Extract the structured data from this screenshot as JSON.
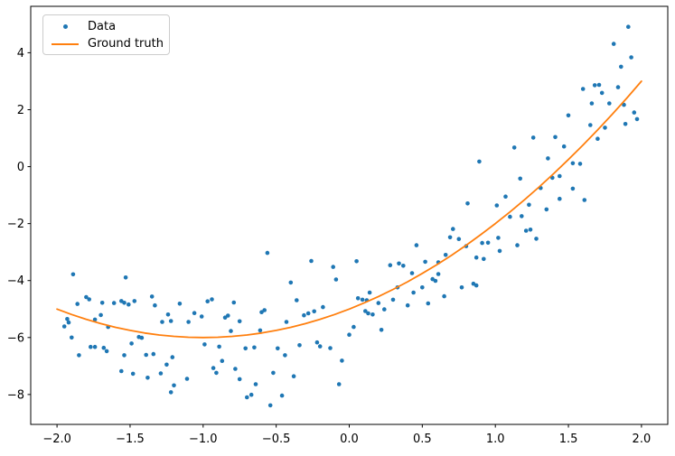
{
  "chart_data": {
    "type": "scatter",
    "title": "",
    "xlabel": "",
    "ylabel": "",
    "grid": false,
    "xlim": [
      -2.18,
      2.18
    ],
    "ylim": [
      -9.05,
      5.63
    ],
    "x_ticks": {
      "values": [
        -2.0,
        -1.5,
        -1.0,
        -0.5,
        0.0,
        0.5,
        1.0,
        1.5,
        2.0
      ],
      "labels": [
        "−2.0",
        "−1.5",
        "−1.0",
        "−0.5",
        "0.0",
        "0.5",
        "1.0",
        "1.5",
        "2.0"
      ]
    },
    "y_ticks": {
      "values": [
        -8,
        -6,
        -4,
        -2,
        0,
        2,
        4
      ],
      "labels": [
        "−8",
        "−6",
        "−4",
        "−2",
        "0",
        "2",
        "4"
      ]
    },
    "legend": {
      "position": "upper left",
      "items": [
        {
          "label": "Data",
          "marker": "dot",
          "color": "#1f77b4"
        },
        {
          "label": "Ground truth",
          "marker": "line",
          "color": "#ff7f0e"
        }
      ]
    },
    "colors": {
      "scatter": "#1f77b4",
      "line": "#ff7f0e",
      "spine": "#000000",
      "tick_label": "#000000",
      "background": "#ffffff",
      "legend_border": "#cccccc"
    },
    "series": [
      {
        "name": "Data",
        "type": "scatter",
        "color": "#1f77b4",
        "marker_size": 4.6,
        "points": [
          [
            -1.95,
            -5.61
          ],
          [
            -1.93,
            -5.35
          ],
          [
            -1.92,
            -5.47
          ],
          [
            -1.9,
            -6.0
          ],
          [
            -1.89,
            -3.78
          ],
          [
            -1.86,
            -4.82
          ],
          [
            -1.85,
            -6.62
          ],
          [
            -1.8,
            -4.58
          ],
          [
            -1.78,
            -4.66
          ],
          [
            -1.77,
            -6.33
          ],
          [
            -1.74,
            -6.33
          ],
          [
            -1.74,
            -5.37
          ],
          [
            -1.7,
            -5.21
          ],
          [
            -1.69,
            -4.78
          ],
          [
            -1.68,
            -6.36
          ],
          [
            -1.66,
            -6.48
          ],
          [
            -1.65,
            -5.63
          ],
          [
            -1.61,
            -4.79
          ],
          [
            -1.56,
            -4.72
          ],
          [
            -1.56,
            -7.18
          ],
          [
            -1.54,
            -4.78
          ],
          [
            -1.54,
            -6.62
          ],
          [
            -1.53,
            -3.89
          ],
          [
            -1.51,
            -4.84
          ],
          [
            -1.49,
            -6.21
          ],
          [
            -1.48,
            -7.27
          ],
          [
            -1.47,
            -4.72
          ],
          [
            -1.44,
            -5.98
          ],
          [
            -1.42,
            -6.01
          ],
          [
            -1.39,
            -6.61
          ],
          [
            -1.38,
            -7.41
          ],
          [
            -1.35,
            -4.56
          ],
          [
            -1.34,
            -6.58
          ],
          [
            -1.33,
            -4.87
          ],
          [
            -1.29,
            -7.26
          ],
          [
            -1.28,
            -5.45
          ],
          [
            -1.25,
            -6.95
          ],
          [
            -1.24,
            -5.19
          ],
          [
            -1.22,
            -5.42
          ],
          [
            -1.22,
            -7.92
          ],
          [
            -1.21,
            -6.69
          ],
          [
            -1.2,
            -7.68
          ],
          [
            -1.16,
            -4.81
          ],
          [
            -1.11,
            -7.45
          ],
          [
            -1.1,
            -5.45
          ],
          [
            -1.06,
            -5.14
          ],
          [
            -1.01,
            -5.26
          ],
          [
            -0.99,
            -6.24
          ],
          [
            -0.97,
            -4.73
          ],
          [
            -0.94,
            -4.66
          ],
          [
            -0.93,
            -7.07
          ],
          [
            -0.91,
            -7.24
          ],
          [
            -0.89,
            -6.32
          ],
          [
            -0.87,
            -6.82
          ],
          [
            -0.85,
            -5.3
          ],
          [
            -0.83,
            -5.23
          ],
          [
            -0.81,
            -5.77
          ],
          [
            -0.79,
            -4.77
          ],
          [
            -0.78,
            -7.1
          ],
          [
            -0.75,
            -5.43
          ],
          [
            -0.75,
            -7.46
          ],
          [
            -0.71,
            -6.38
          ],
          [
            -0.7,
            -8.1
          ],
          [
            -0.67,
            -8.01
          ],
          [
            -0.65,
            -6.35
          ],
          [
            -0.64,
            -7.64
          ],
          [
            -0.61,
            -5.75
          ],
          [
            -0.6,
            -5.11
          ],
          [
            -0.58,
            -5.04
          ],
          [
            -0.56,
            -3.03
          ],
          [
            -0.54,
            -8.38
          ],
          [
            -0.52,
            -7.24
          ],
          [
            -0.49,
            -6.38
          ],
          [
            -0.46,
            -8.04
          ],
          [
            -0.44,
            -6.62
          ],
          [
            -0.43,
            -5.45
          ],
          [
            -0.4,
            -4.07
          ],
          [
            -0.38,
            -7.36
          ],
          [
            -0.36,
            -4.69
          ],
          [
            -0.34,
            -6.27
          ],
          [
            -0.31,
            -5.22
          ],
          [
            -0.28,
            -5.15
          ],
          [
            -0.26,
            -3.31
          ],
          [
            -0.24,
            -5.08
          ],
          [
            -0.22,
            -6.17
          ],
          [
            -0.2,
            -6.31
          ],
          [
            -0.18,
            -4.93
          ],
          [
            -0.13,
            -6.37
          ],
          [
            -0.11,
            -3.52
          ],
          [
            -0.09,
            -3.96
          ],
          [
            -0.07,
            -7.64
          ],
          [
            -0.05,
            -6.81
          ],
          [
            0.0,
            -5.9
          ],
          [
            0.03,
            -5.63
          ],
          [
            0.05,
            -3.32
          ],
          [
            0.06,
            -4.62
          ],
          [
            0.09,
            -4.67
          ],
          [
            0.11,
            -5.07
          ],
          [
            0.12,
            -4.69
          ],
          [
            0.13,
            -5.15
          ],
          [
            0.14,
            -4.42
          ],
          [
            0.16,
            -5.19
          ],
          [
            0.2,
            -4.79
          ],
          [
            0.22,
            -5.73
          ],
          [
            0.24,
            -5.01
          ],
          [
            0.28,
            -3.46
          ],
          [
            0.3,
            -4.67
          ],
          [
            0.33,
            -4.24
          ],
          [
            0.34,
            -3.4
          ],
          [
            0.37,
            -3.48
          ],
          [
            0.4,
            -4.87
          ],
          [
            0.43,
            -3.74
          ],
          [
            0.44,
            -4.42
          ],
          [
            0.46,
            -2.76
          ],
          [
            0.5,
            -4.24
          ],
          [
            0.52,
            -3.34
          ],
          [
            0.54,
            -4.8
          ],
          [
            0.57,
            -3.95
          ],
          [
            0.59,
            -4.01
          ],
          [
            0.61,
            -3.36
          ],
          [
            0.61,
            -3.77
          ],
          [
            0.65,
            -4.55
          ],
          [
            0.66,
            -3.1
          ],
          [
            0.69,
            -2.48
          ],
          [
            0.71,
            -2.19
          ],
          [
            0.75,
            -2.54
          ],
          [
            0.77,
            -4.24
          ],
          [
            0.8,
            -2.79
          ],
          [
            0.81,
            -1.29
          ],
          [
            0.85,
            -4.11
          ],
          [
            0.87,
            -4.17
          ],
          [
            0.87,
            -3.19
          ],
          [
            0.89,
            0.18
          ],
          [
            0.91,
            -2.68
          ],
          [
            0.92,
            -3.24
          ],
          [
            0.95,
            -2.67
          ],
          [
            1.01,
            -1.36
          ],
          [
            1.02,
            -2.5
          ],
          [
            1.03,
            -2.96
          ],
          [
            1.07,
            -1.05
          ],
          [
            1.1,
            -1.76
          ],
          [
            1.13,
            0.67
          ],
          [
            1.15,
            -2.76
          ],
          [
            1.17,
            -0.42
          ],
          [
            1.18,
            -1.74
          ],
          [
            1.21,
            -2.25
          ],
          [
            1.23,
            -1.34
          ],
          [
            1.24,
            -2.21
          ],
          [
            1.26,
            1.02
          ],
          [
            1.28,
            -2.53
          ],
          [
            1.31,
            -0.75
          ],
          [
            1.35,
            -1.5
          ],
          [
            1.36,
            0.29
          ],
          [
            1.39,
            -0.39
          ],
          [
            1.41,
            1.04
          ],
          [
            1.44,
            -0.33
          ],
          [
            1.44,
            -1.13
          ],
          [
            1.47,
            0.71
          ],
          [
            1.5,
            1.8
          ],
          [
            1.53,
            0.12
          ],
          [
            1.53,
            -0.77
          ],
          [
            1.58,
            0.1
          ],
          [
            1.6,
            2.73
          ],
          [
            1.61,
            -1.17
          ],
          [
            1.65,
            1.46
          ],
          [
            1.66,
            2.22
          ],
          [
            1.68,
            2.86
          ],
          [
            1.7,
            0.98
          ],
          [
            1.71,
            2.87
          ],
          [
            1.73,
            2.59
          ],
          [
            1.75,
            1.37
          ],
          [
            1.78,
            2.22
          ],
          [
            1.81,
            4.31
          ],
          [
            1.84,
            2.79
          ],
          [
            1.86,
            3.51
          ],
          [
            1.88,
            2.17
          ],
          [
            1.89,
            1.5
          ],
          [
            1.91,
            4.91
          ],
          [
            1.93,
            3.84
          ],
          [
            1.95,
            1.9
          ],
          [
            1.97,
            1.67
          ]
        ]
      },
      {
        "name": "Ground truth",
        "type": "line",
        "color": "#ff7f0e",
        "line_width": 1.8,
        "formula": "y = x^2 + 2x - 5",
        "points": [
          [
            -2.0,
            -5.0
          ],
          [
            -1.9,
            -5.19
          ],
          [
            -1.8,
            -5.36
          ],
          [
            -1.7,
            -5.51
          ],
          [
            -1.6,
            -5.64
          ],
          [
            -1.5,
            -5.75
          ],
          [
            -1.4,
            -5.84
          ],
          [
            -1.3,
            -5.91
          ],
          [
            -1.2,
            -5.96
          ],
          [
            -1.1,
            -5.99
          ],
          [
            -1.0,
            -6.0
          ],
          [
            -0.9,
            -5.99
          ],
          [
            -0.8,
            -5.96
          ],
          [
            -0.7,
            -5.91
          ],
          [
            -0.6,
            -5.84
          ],
          [
            -0.5,
            -5.75
          ],
          [
            -0.4,
            -5.64
          ],
          [
            -0.3,
            -5.51
          ],
          [
            -0.2,
            -5.36
          ],
          [
            -0.1,
            -5.19
          ],
          [
            0.0,
            -5.0
          ],
          [
            0.1,
            -4.79
          ],
          [
            0.2,
            -4.56
          ],
          [
            0.3,
            -4.31
          ],
          [
            0.4,
            -4.04
          ],
          [
            0.5,
            -3.75
          ],
          [
            0.6,
            -3.44
          ],
          [
            0.7,
            -3.11
          ],
          [
            0.8,
            -2.76
          ],
          [
            0.9,
            -2.39
          ],
          [
            1.0,
            -2.0
          ],
          [
            1.1,
            -1.59
          ],
          [
            1.2,
            -1.16
          ],
          [
            1.3,
            -0.71
          ],
          [
            1.4,
            -0.24
          ],
          [
            1.5,
            0.25
          ],
          [
            1.6,
            0.76
          ],
          [
            1.7,
            1.29
          ],
          [
            1.8,
            1.84
          ],
          [
            1.9,
            2.41
          ],
          [
            2.0,
            3.0
          ]
        ]
      }
    ]
  }
}
